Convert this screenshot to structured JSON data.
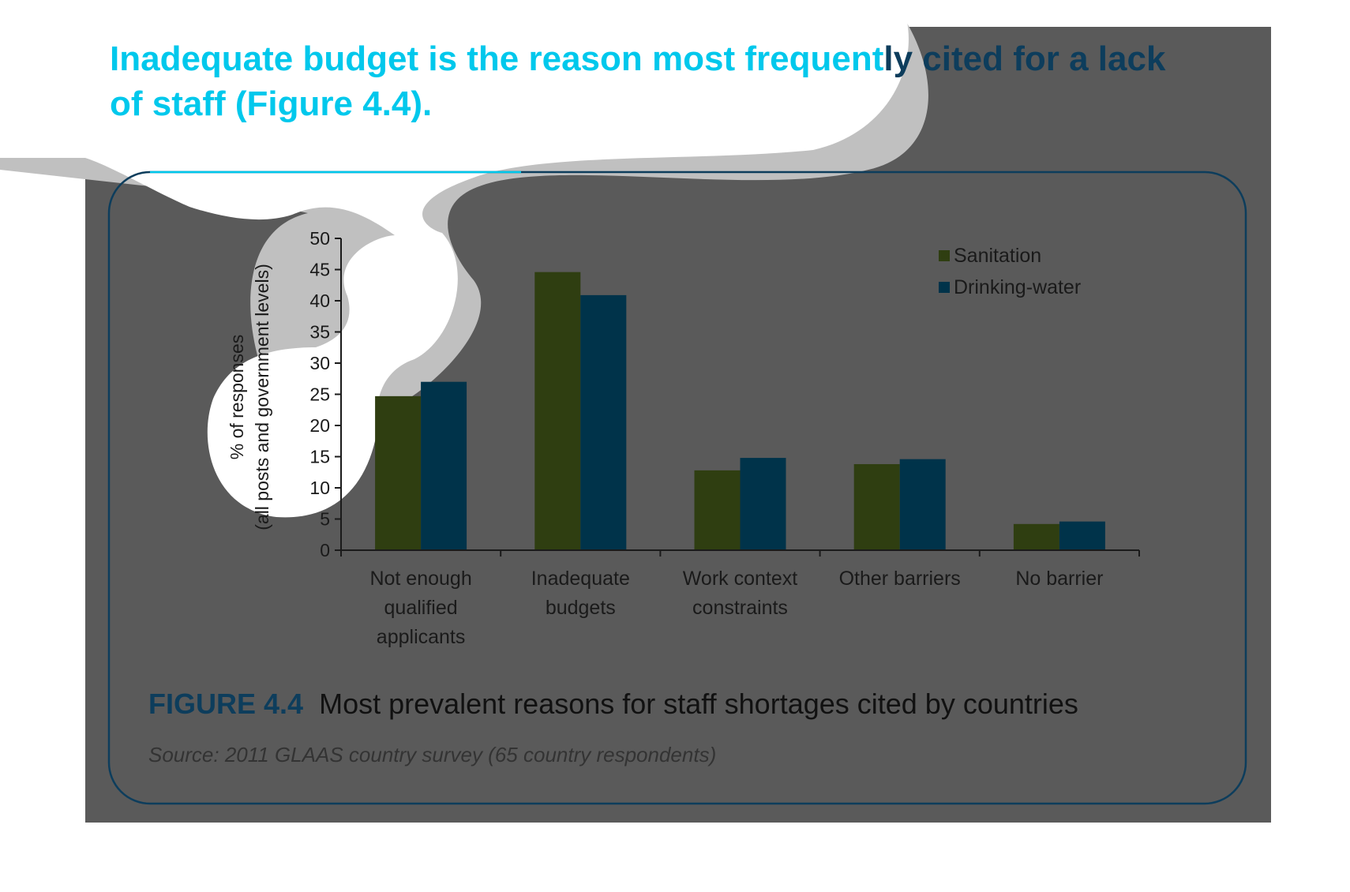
{
  "headline": {
    "part_light": "Inadequate budget is the reason most frequent",
    "part_dark": "ly cited for a lack",
    "line2": "of staff (Figure 4.4)."
  },
  "figure": {
    "label": "FIGURE 4.4",
    "caption": "Most prevalent reasons for staff shortages cited by countries",
    "source": "Source: 2011 GLAAS country survey (65 country respondents)"
  },
  "colors": {
    "headline": "#00c8ec",
    "headline_dark": "#0d3d5c",
    "panel_bg": "#5a5a5a",
    "frame": "#0d3d5c",
    "sanitation": "#2f3e11",
    "drinking_water": "#00334a",
    "figure_label": "#0d3d5c"
  },
  "chart_data": {
    "type": "bar",
    "title": "",
    "ylabel_line1": "% of responses",
    "ylabel_line2": "(all posts and government levels)",
    "xlabel": "",
    "ylim": [
      0,
      50
    ],
    "yticks": [
      "0",
      "5",
      "10",
      "15",
      "20",
      "25",
      "30",
      "35",
      "40",
      "45",
      "50"
    ],
    "categories": [
      [
        "Not enough",
        "qualified",
        "applicants"
      ],
      [
        "Inadequate",
        "budgets"
      ],
      [
        "Work context",
        "constraints"
      ],
      [
        "Other barriers"
      ],
      [
        "No barrier"
      ]
    ],
    "series": [
      {
        "name": "Sanitation",
        "values": [
          24.7,
          44.6,
          12.8,
          13.8,
          4.2
        ]
      },
      {
        "name": "Drinking-water",
        "values": [
          27.0,
          40.9,
          14.8,
          14.6,
          4.6
        ]
      }
    ],
    "legend_position": "top-right",
    "grid": false
  }
}
